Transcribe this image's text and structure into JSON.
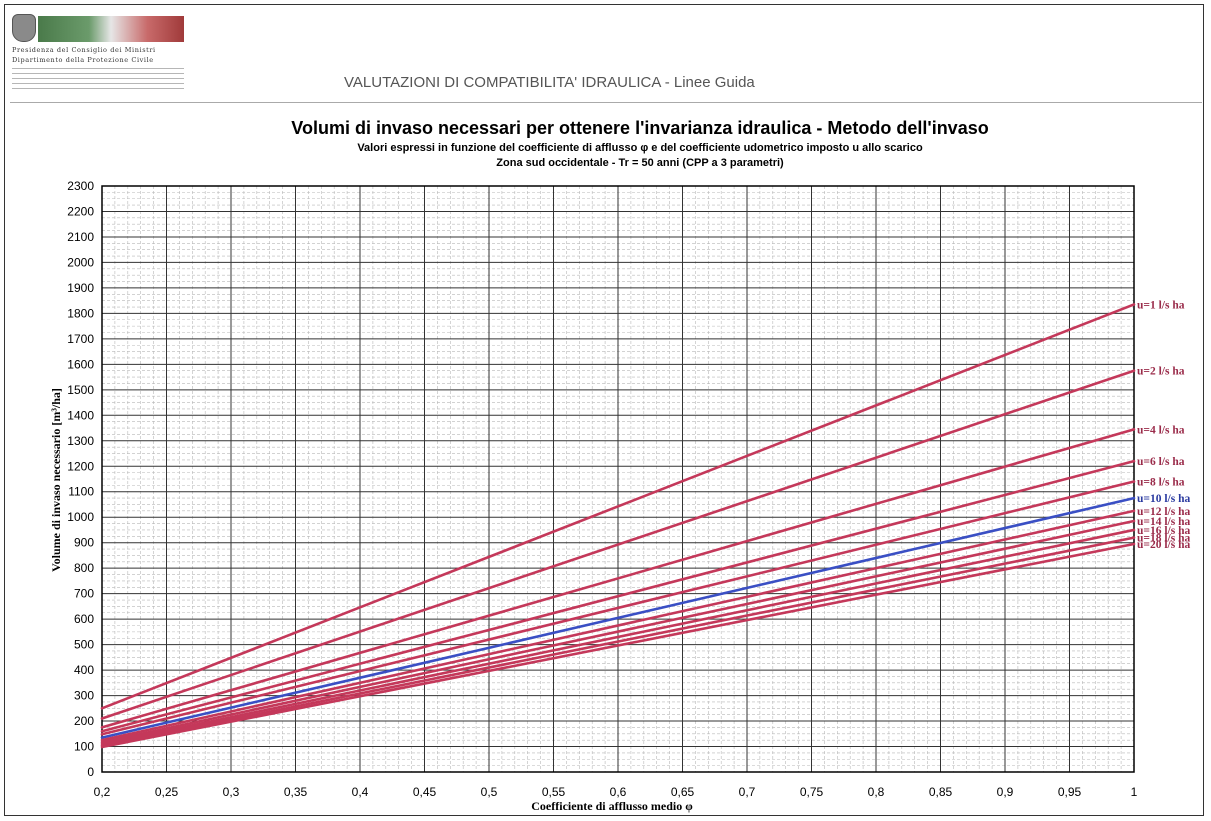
{
  "logo": {
    "line1": "Presidenza del Consiglio dei Ministri",
    "line2": "Dipartimento della Protezione Civile"
  },
  "header": {
    "text": "VALUTAZIONI DI COMPATIBILITA' IDRAULICA - Linee Guida"
  },
  "colors": {
    "red_series": "#c4385a",
    "blue_series": "#3a4fc4",
    "grid_major": "#333333",
    "grid_minor": "#b8b8b8"
  },
  "chart_data": {
    "type": "line",
    "title": "Volumi di invaso necessari per ottenere l'invarianza idraulica - Metodo dell'invaso",
    "subtitle": "Valori espressi in funzione del coefficiente di afflusso φ e del coefficiente udometrico imposto u allo scarico",
    "subtitle2": "Zona sud occidentale  - Tr = 50 anni (CPP a 3 parametri)",
    "xlabel": "Coefficiente di afflusso medio φ",
    "ylabel": "Volume di invaso necessario [m³/ha]",
    "xlim": [
      0.2,
      1.0
    ],
    "ylim": [
      0,
      2300
    ],
    "x_ticks": [
      "0,2",
      "0,25",
      "0,3",
      "0,35",
      "0,4",
      "0,45",
      "0,5",
      "0,55",
      "0,6",
      "0,65",
      "0,7",
      "0,75",
      "0,8",
      "0,85",
      "0,9",
      "0,95",
      "1"
    ],
    "y_ticks": [
      "0",
      "100",
      "200",
      "300",
      "400",
      "500",
      "600",
      "700",
      "800",
      "900",
      "1000",
      "1100",
      "1200",
      "1300",
      "1400",
      "1500",
      "1600",
      "1700",
      "1800",
      "1900",
      "2000",
      "2100",
      "2200",
      "2300"
    ],
    "grid": true,
    "x": [
      0.2,
      1.0
    ],
    "series": [
      {
        "name": "u=1 l/s ha",
        "values": [
          250,
          1835
        ],
        "color": "red"
      },
      {
        "name": "u=2 l/s ha",
        "values": [
          210,
          1575
        ],
        "color": "red"
      },
      {
        "name": "u=4 l/s ha",
        "values": [
          175,
          1345
        ],
        "color": "red"
      },
      {
        "name": "u=6 l/s ha",
        "values": [
          160,
          1220
        ],
        "color": "red"
      },
      {
        "name": "u=8 l/s ha",
        "values": [
          148,
          1140
        ],
        "color": "red"
      },
      {
        "name": "u=10 l/s ha",
        "values": [
          135,
          1075
        ],
        "color": "blue"
      },
      {
        "name": "u=12 l/s ha",
        "values": [
          125,
          1025
        ],
        "color": "red"
      },
      {
        "name": "u=14 l/s ha",
        "values": [
          117,
          985
        ],
        "color": "red"
      },
      {
        "name": "u=16 l/s ha",
        "values": [
          110,
          950
        ],
        "color": "red"
      },
      {
        "name": "u=18 l/s ha",
        "values": [
          104,
          920
        ],
        "color": "red"
      },
      {
        "name": "u=20 l/s ha",
        "values": [
          98,
          895
        ],
        "color": "red"
      }
    ]
  }
}
